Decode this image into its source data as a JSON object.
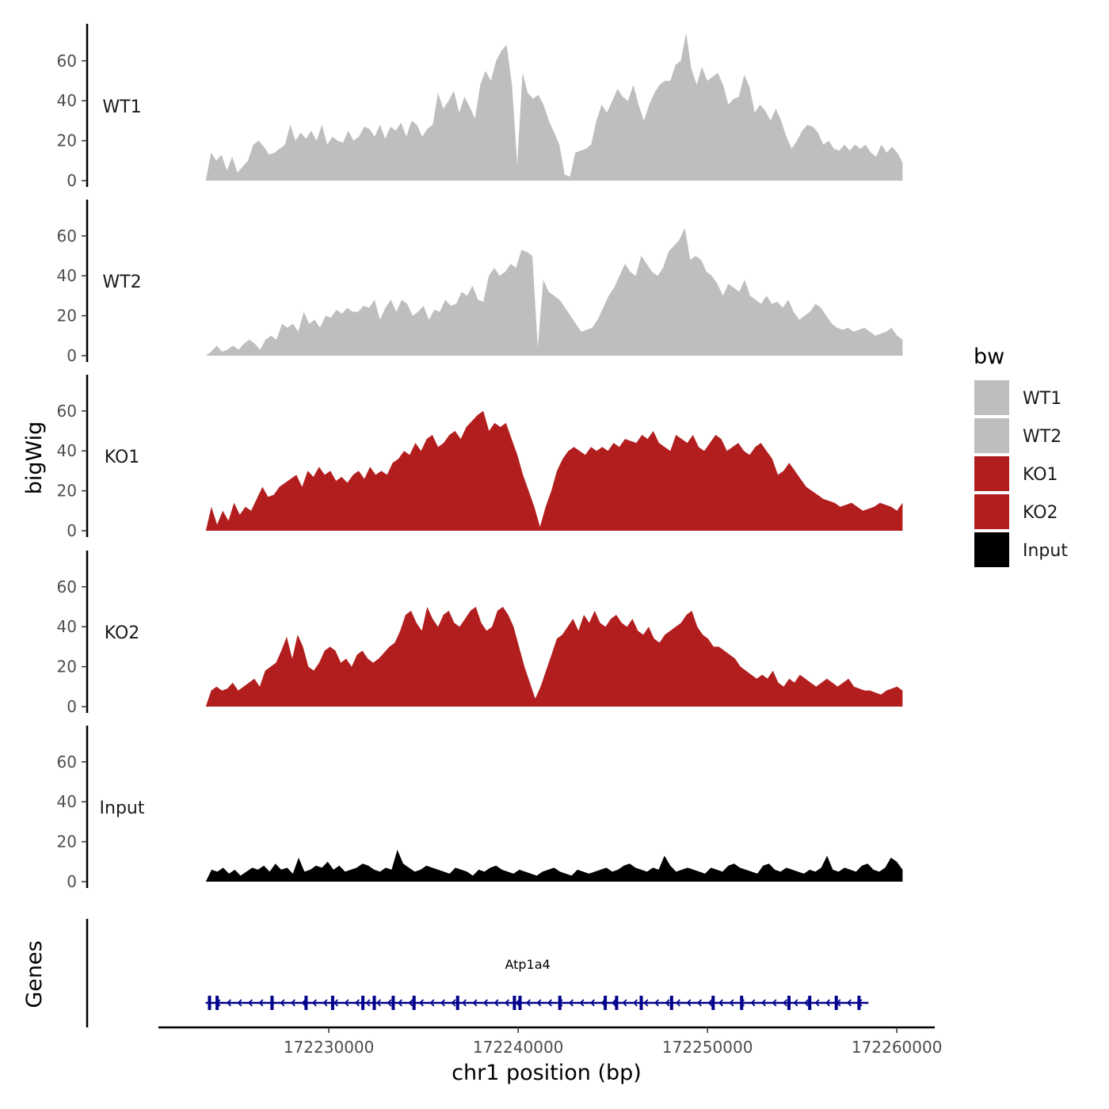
{
  "chart_data": {
    "type": "area",
    "title": "",
    "ylabel": "bigWig",
    "xlabel": "chr1 position (bp)",
    "x_range": [
      172223500,
      172260300
    ],
    "x_axis_limits": [
      172221000,
      172262000
    ],
    "x_ticks": [
      172230000,
      172240000,
      172250000,
      172260000
    ],
    "x_tick_labels": [
      "172230000",
      "172240000",
      "172250000",
      "172260000"
    ],
    "ylim": [
      0,
      78
    ],
    "y_ticks": [
      0,
      20,
      40,
      60
    ],
    "y_tick_labels": [
      "0",
      "20",
      "40",
      "60"
    ],
    "grid": false,
    "legend": {
      "title": "bw",
      "position": "right",
      "entries": [
        {
          "label": "WT1",
          "color": "#bebebe"
        },
        {
          "label": "WT2",
          "color": "#bebebe"
        },
        {
          "label": "KO1",
          "color": "#b21e1e"
        },
        {
          "label": "KO2",
          "color": "#b21e1e"
        },
        {
          "label": "Input",
          "color": "#000000"
        }
      ]
    },
    "series": [
      {
        "name": "WT1",
        "color": "#bebebe",
        "values": [
          0,
          14,
          10,
          13,
          5,
          12,
          4,
          7,
          10,
          18,
          20,
          17,
          13,
          14,
          16,
          18,
          28,
          20,
          24,
          21,
          25,
          20,
          28,
          18,
          22,
          20,
          19,
          25,
          20,
          22,
          27,
          26,
          22,
          28,
          21,
          27,
          25,
          29,
          22,
          30,
          28,
          22,
          26,
          28,
          44,
          36,
          40,
          45,
          34,
          42,
          37,
          31,
          48,
          55,
          50,
          60,
          65,
          68,
          48,
          8,
          54,
          44,
          41,
          43,
          38,
          30,
          24,
          18,
          3,
          2,
          14,
          15,
          16,
          18,
          30,
          38,
          34,
          40,
          46,
          42,
          40,
          48,
          38,
          30,
          38,
          44,
          48,
          50,
          50,
          58,
          60,
          74,
          56,
          48,
          57,
          50,
          52,
          54,
          48,
          38,
          41,
          42,
          53,
          47,
          34,
          38,
          35,
          30,
          36,
          30,
          22,
          16,
          20,
          25,
          28,
          27,
          24,
          18,
          20,
          16,
          15,
          18,
          15,
          18,
          16,
          18,
          14,
          12,
          18,
          14,
          17,
          14,
          9
        ]
      },
      {
        "name": "WT2",
        "color": "#bebebe",
        "values": [
          0,
          2,
          5,
          2,
          3,
          5,
          3,
          6,
          8,
          6,
          3,
          8,
          10,
          8,
          16,
          14,
          16,
          12,
          22,
          16,
          18,
          14,
          20,
          19,
          23,
          21,
          24,
          22,
          22,
          25,
          24,
          28,
          18,
          24,
          28,
          22,
          28,
          26,
          20,
          22,
          25,
          18,
          23,
          22,
          28,
          25,
          26,
          32,
          30,
          35,
          28,
          27,
          40,
          44,
          40,
          42,
          46,
          44,
          53,
          52,
          50,
          4,
          38,
          32,
          30,
          28,
          24,
          20,
          16,
          12,
          13,
          14,
          18,
          24,
          30,
          34,
          40,
          46,
          42,
          40,
          50,
          46,
          42,
          40,
          44,
          52,
          55,
          58,
          64,
          48,
          50,
          48,
          42,
          40,
          36,
          30,
          36,
          34,
          32,
          38,
          30,
          28,
          26,
          30,
          26,
          27,
          24,
          28,
          22,
          18,
          20,
          22,
          26,
          24,
          20,
          16,
          14,
          13,
          14,
          12,
          13,
          14,
          12,
          10,
          11,
          12,
          14,
          10,
          8
        ]
      },
      {
        "name": "KO1",
        "color": "#b21e1e",
        "values": [
          0,
          12,
          3,
          10,
          5,
          14,
          8,
          12,
          10,
          16,
          22,
          17,
          18,
          22,
          24,
          26,
          28,
          22,
          30,
          27,
          32,
          28,
          30,
          25,
          27,
          24,
          28,
          30,
          26,
          32,
          28,
          30,
          28,
          34,
          36,
          40,
          38,
          44,
          40,
          46,
          48,
          42,
          44,
          48,
          50,
          46,
          52,
          55,
          58,
          60,
          50,
          54,
          52,
          54,
          46,
          38,
          28,
          20,
          12,
          2,
          12,
          20,
          30,
          36,
          40,
          42,
          40,
          38,
          42,
          40,
          42,
          40,
          44,
          42,
          46,
          45,
          44,
          48,
          46,
          50,
          44,
          42,
          40,
          48,
          46,
          44,
          48,
          42,
          40,
          44,
          48,
          46,
          40,
          42,
          44,
          40,
          38,
          42,
          44,
          40,
          36,
          28,
          30,
          34,
          30,
          26,
          22,
          20,
          18,
          16,
          15,
          14,
          12,
          13,
          14,
          12,
          10,
          11,
          12,
          14,
          13,
          12,
          10,
          14
        ]
      },
      {
        "name": "KO2",
        "color": "#b21e1e",
        "values": [
          0,
          8,
          10,
          8,
          9,
          12,
          8,
          10,
          12,
          14,
          10,
          18,
          20,
          22,
          28,
          35,
          24,
          36,
          30,
          20,
          18,
          22,
          28,
          30,
          28,
          22,
          24,
          20,
          26,
          28,
          24,
          22,
          24,
          27,
          30,
          32,
          38,
          46,
          48,
          42,
          38,
          50,
          44,
          40,
          46,
          48,
          42,
          40,
          44,
          48,
          50,
          42,
          38,
          40,
          48,
          50,
          46,
          40,
          30,
          20,
          12,
          4,
          10,
          18,
          26,
          34,
          36,
          40,
          44,
          38,
          46,
          42,
          48,
          42,
          40,
          44,
          46,
          42,
          40,
          44,
          38,
          36,
          40,
          34,
          32,
          36,
          38,
          40,
          42,
          46,
          48,
          40,
          36,
          34,
          30,
          30,
          28,
          26,
          24,
          20,
          18,
          16,
          14,
          16,
          14,
          18,
          12,
          10,
          14,
          12,
          16,
          14,
          12,
          10,
          12,
          14,
          12,
          10,
          12,
          14,
          10,
          9,
          8,
          8,
          7,
          6,
          8,
          9,
          10,
          8
        ]
      },
      {
        "name": "Input",
        "color": "#000000",
        "values": [
          0,
          6,
          5,
          7,
          4,
          6,
          3,
          5,
          7,
          6,
          8,
          5,
          9,
          6,
          7,
          4,
          12,
          5,
          6,
          8,
          7,
          10,
          6,
          8,
          5,
          6,
          7,
          9,
          8,
          6,
          5,
          7,
          6,
          16,
          9,
          7,
          5,
          6,
          8,
          7,
          6,
          5,
          4,
          7,
          6,
          5,
          3,
          6,
          5,
          7,
          8,
          6,
          5,
          4,
          6,
          5,
          4,
          3,
          5,
          6,
          7,
          5,
          4,
          3,
          6,
          5,
          4,
          5,
          6,
          7,
          5,
          6,
          8,
          9,
          7,
          6,
          5,
          7,
          6,
          13,
          8,
          5,
          6,
          7,
          6,
          5,
          4,
          7,
          6,
          5,
          8,
          9,
          7,
          6,
          5,
          4,
          8,
          9,
          6,
          5,
          7,
          6,
          5,
          4,
          6,
          5,
          7,
          13,
          6,
          5,
          7,
          6,
          5,
          8,
          9,
          6,
          5,
          7,
          12,
          10,
          6
        ]
      }
    ],
    "gene_track": {
      "label": "Genes",
      "gene_name": "Atp1a4",
      "strand": "-",
      "start": 172223500,
      "end": 172258500,
      "exons": [
        172223700,
        172224100,
        172227000,
        172228800,
        172230200,
        172231800,
        172232400,
        172233400,
        172234500,
        172236800,
        172239800,
        172240100,
        172242200,
        172244600,
        172245200,
        172246500,
        172248100,
        172250300,
        172251800,
        172254300,
        172255400,
        172256800,
        172258000
      ]
    }
  }
}
